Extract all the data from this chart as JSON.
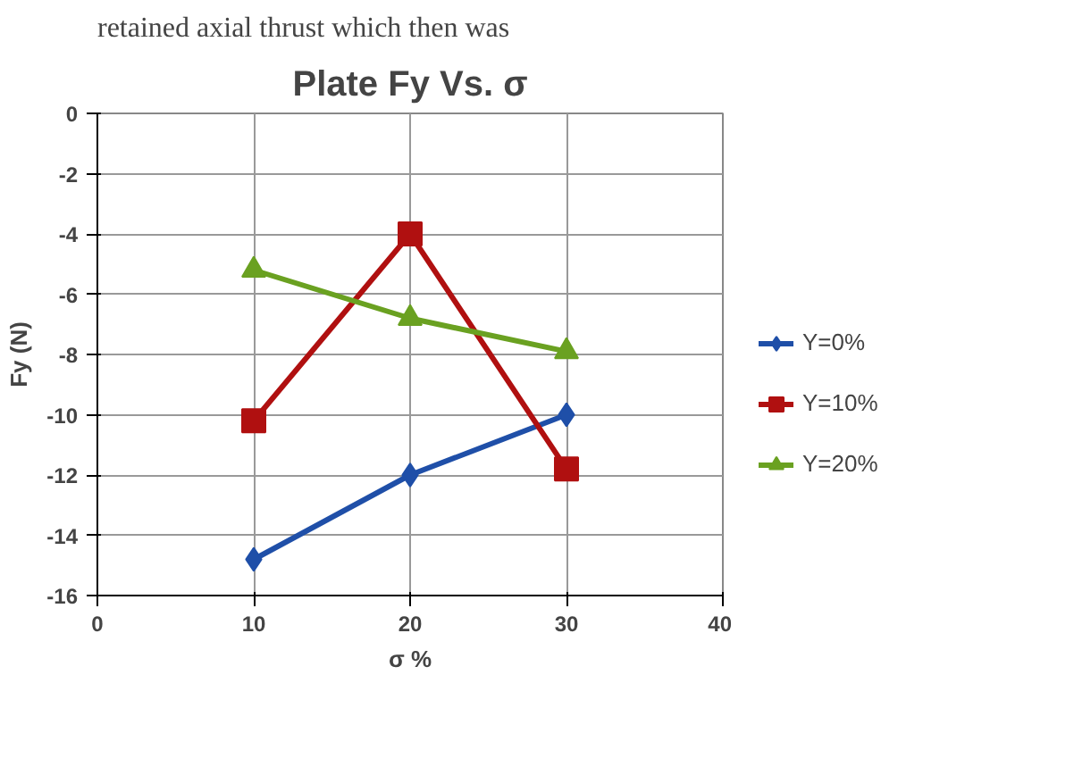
{
  "chart_data": {
    "type": "line",
    "title": "Plate Fy Vs. σ",
    "xlabel": "σ %",
    "ylabel": "Fy (N)",
    "annotations": [
      "retained axial thrust which then was"
    ],
    "x": [
      10,
      20,
      30
    ],
    "series": [
      {
        "name": "Υ=0%",
        "color": "#1f4fa8",
        "values": [
          -14.8,
          -12,
          -10
        ],
        "marker": "diamond"
      },
      {
        "name": "Υ=10%",
        "color": "#b01010",
        "values": [
          -10.2,
          -4,
          -11.8
        ],
        "marker": "square"
      },
      {
        "name": "Υ=20%",
        "color": "#6aa121",
        "values": [
          -5.2,
          -6.8,
          -7.9
        ],
        "marker": "triangle"
      }
    ],
    "xlim": [
      0,
      40
    ],
    "xticks": [
      0,
      10,
      20,
      30,
      40
    ],
    "ylim": [
      -16,
      0
    ],
    "yticks": [
      -16,
      -14,
      -12,
      -10,
      -8,
      -6,
      -4,
      -2,
      0
    ],
    "grid": true,
    "legend": "right",
    "line_style": "solid"
  }
}
